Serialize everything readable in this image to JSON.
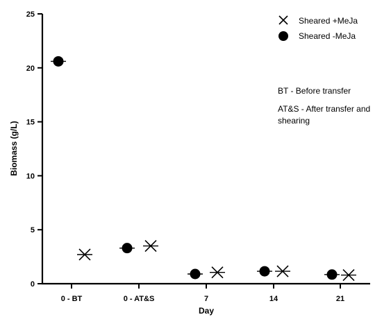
{
  "chart_data": {
    "type": "scatter",
    "title": "",
    "xlabel": "Day",
    "ylabel": "Biomass (g/L)",
    "ylim": [
      0,
      25
    ],
    "yticks": [
      0,
      5,
      10,
      15,
      20,
      25
    ],
    "categories": [
      "0 - BT",
      "0 - AT&S",
      "7",
      "14",
      "21"
    ],
    "series": [
      {
        "name": "Sheared +MeJa",
        "marker": "cross",
        "color": "#000000",
        "values": [
          2.7,
          3.5,
          1.05,
          1.15,
          0.8
        ]
      },
      {
        "name": "Sheared -MeJa",
        "marker": "circle",
        "color": "#000000",
        "values": [
          20.6,
          3.3,
          0.9,
          1.15,
          0.85
        ]
      }
    ],
    "legend_position": "top-right",
    "grid": false,
    "annotations": [
      "BT - Before transfer",
      "AT&S - After transfer and",
      "shearing"
    ]
  }
}
